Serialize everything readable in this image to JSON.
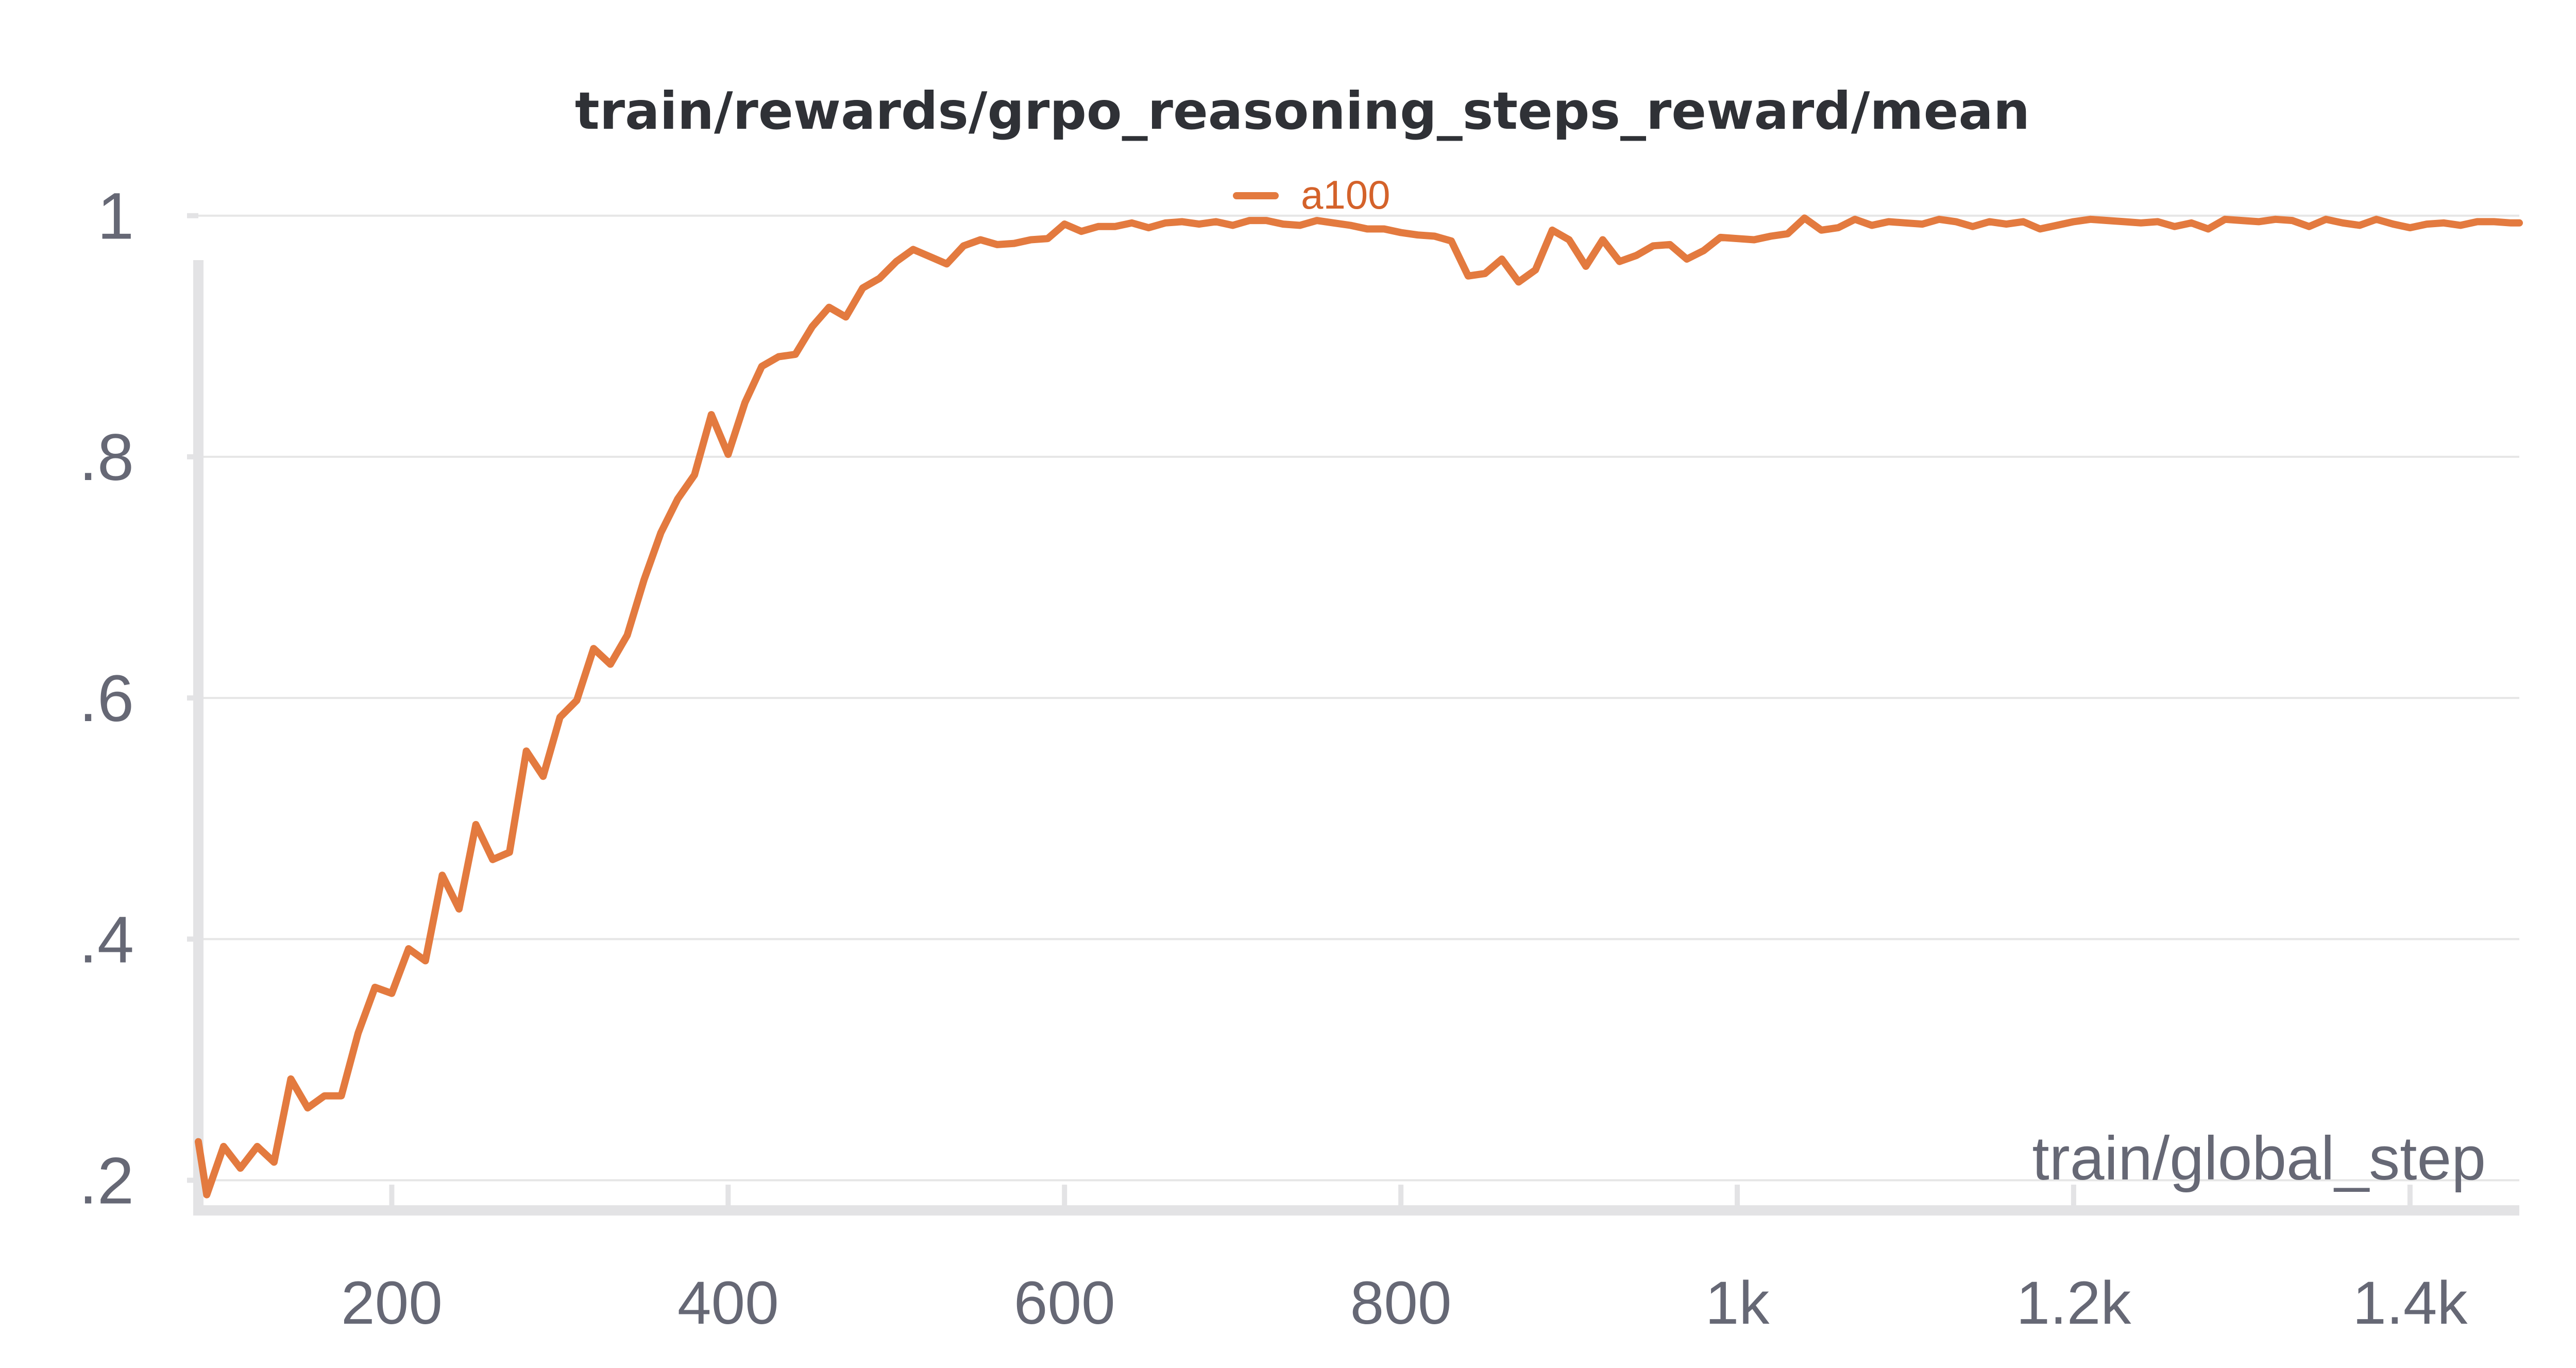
{
  "colors": {
    "series": "#e37a3f",
    "legend_text": "#d4622a",
    "title": "#2f3136",
    "tick_text": "#666875",
    "grid": "#e6e6e6",
    "axis": "#e3e3e5"
  },
  "chart_data": {
    "type": "line",
    "title": "train/rewards/grpo_reasoning_steps_reward/mean",
    "xlabel": "train/global_step",
    "ylabel": "",
    "xlim": [
      85,
      1465
    ],
    "ylim": [
      0.175,
      1.008
    ],
    "x_ticks": [
      200,
      400,
      600,
      800,
      1000,
      1200,
      1400
    ],
    "x_tick_labels": [
      "200",
      "400",
      "600",
      "800",
      "1k",
      "1.2k",
      "1.4k"
    ],
    "y_ticks": [
      0.2,
      0.4,
      0.6,
      0.8,
      1
    ],
    "y_tick_labels": [
      ".2",
      ".4",
      ".6",
      ".8",
      "1"
    ],
    "grid": "horizontal",
    "legend_position": "top-center",
    "series": [
      {
        "name": "a100",
        "x": [
          85,
          90,
          100,
          110,
          120,
          130,
          140,
          150,
          160,
          170,
          180,
          190,
          200,
          210,
          220,
          230,
          240,
          250,
          260,
          270,
          280,
          290,
          300,
          310,
          320,
          330,
          340,
          350,
          360,
          370,
          380,
          390,
          400,
          410,
          420,
          430,
          440,
          450,
          460,
          470,
          480,
          490,
          500,
          510,
          520,
          530,
          540,
          550,
          560,
          570,
          580,
          590,
          600,
          610,
          620,
          630,
          640,
          650,
          660,
          670,
          680,
          690,
          700,
          710,
          720,
          730,
          740,
          750,
          760,
          770,
          780,
          790,
          800,
          810,
          820,
          830,
          840,
          850,
          860,
          870,
          880,
          890,
          900,
          910,
          920,
          930,
          940,
          950,
          960,
          970,
          980,
          990,
          1000,
          1010,
          1020,
          1030,
          1040,
          1050,
          1060,
          1070,
          1080,
          1090,
          1100,
          1110,
          1120,
          1130,
          1140,
          1150,
          1160,
          1170,
          1180,
          1190,
          1200,
          1210,
          1220,
          1230,
          1240,
          1250,
          1260,
          1270,
          1280,
          1290,
          1300,
          1310,
          1320,
          1330,
          1340,
          1350,
          1360,
          1370,
          1380,
          1390,
          1400,
          1410,
          1420,
          1430,
          1440,
          1450,
          1460,
          1465
        ],
        "y": [
          0.232,
          0.188,
          0.228,
          0.21,
          0.228,
          0.215,
          0.284,
          0.26,
          0.27,
          0.27,
          0.322,
          0.36,
          0.355,
          0.392,
          0.382,
          0.453,
          0.425,
          0.495,
          0.466,
          0.472,
          0.556,
          0.535,
          0.584,
          0.598,
          0.641,
          0.628,
          0.652,
          0.698,
          0.737,
          0.765,
          0.785,
          0.835,
          0.802,
          0.845,
          0.875,
          0.883,
          0.885,
          0.908,
          0.924,
          0.916,
          0.94,
          0.948,
          0.962,
          0.972,
          0.966,
          0.96,
          0.975,
          0.98,
          0.976,
          0.977,
          0.98,
          0.981,
          0.993,
          0.987,
          0.991,
          0.991,
          0.994,
          0.99,
          0.994,
          0.995,
          0.993,
          0.995,
          0.992,
          0.996,
          0.996,
          0.993,
          0.992,
          0.996,
          0.994,
          0.992,
          0.989,
          0.989,
          0.986,
          0.984,
          0.983,
          0.979,
          0.95,
          0.952,
          0.964,
          0.945,
          0.955,
          0.988,
          0.98,
          0.958,
          0.98,
          0.962,
          0.967,
          0.975,
          0.976,
          0.964,
          0.971,
          0.982,
          0.981,
          0.98,
          0.983,
          0.985,
          0.998,
          0.988,
          0.99,
          0.997,
          0.992,
          0.995,
          0.994,
          0.993,
          0.997,
          0.995,
          0.991,
          0.995,
          0.993,
          0.995,
          0.989,
          0.992,
          0.995,
          0.997,
          0.996,
          0.995,
          0.994,
          0.995,
          0.991,
          0.994,
          0.989,
          0.997,
          0.996,
          0.995,
          0.997,
          0.996,
          0.991,
          0.997,
          0.994,
          0.992,
          0.997,
          0.993,
          0.99,
          0.993,
          0.994,
          0.992,
          0.995,
          0.995,
          0.994,
          0.994
        ]
      }
    ]
  }
}
